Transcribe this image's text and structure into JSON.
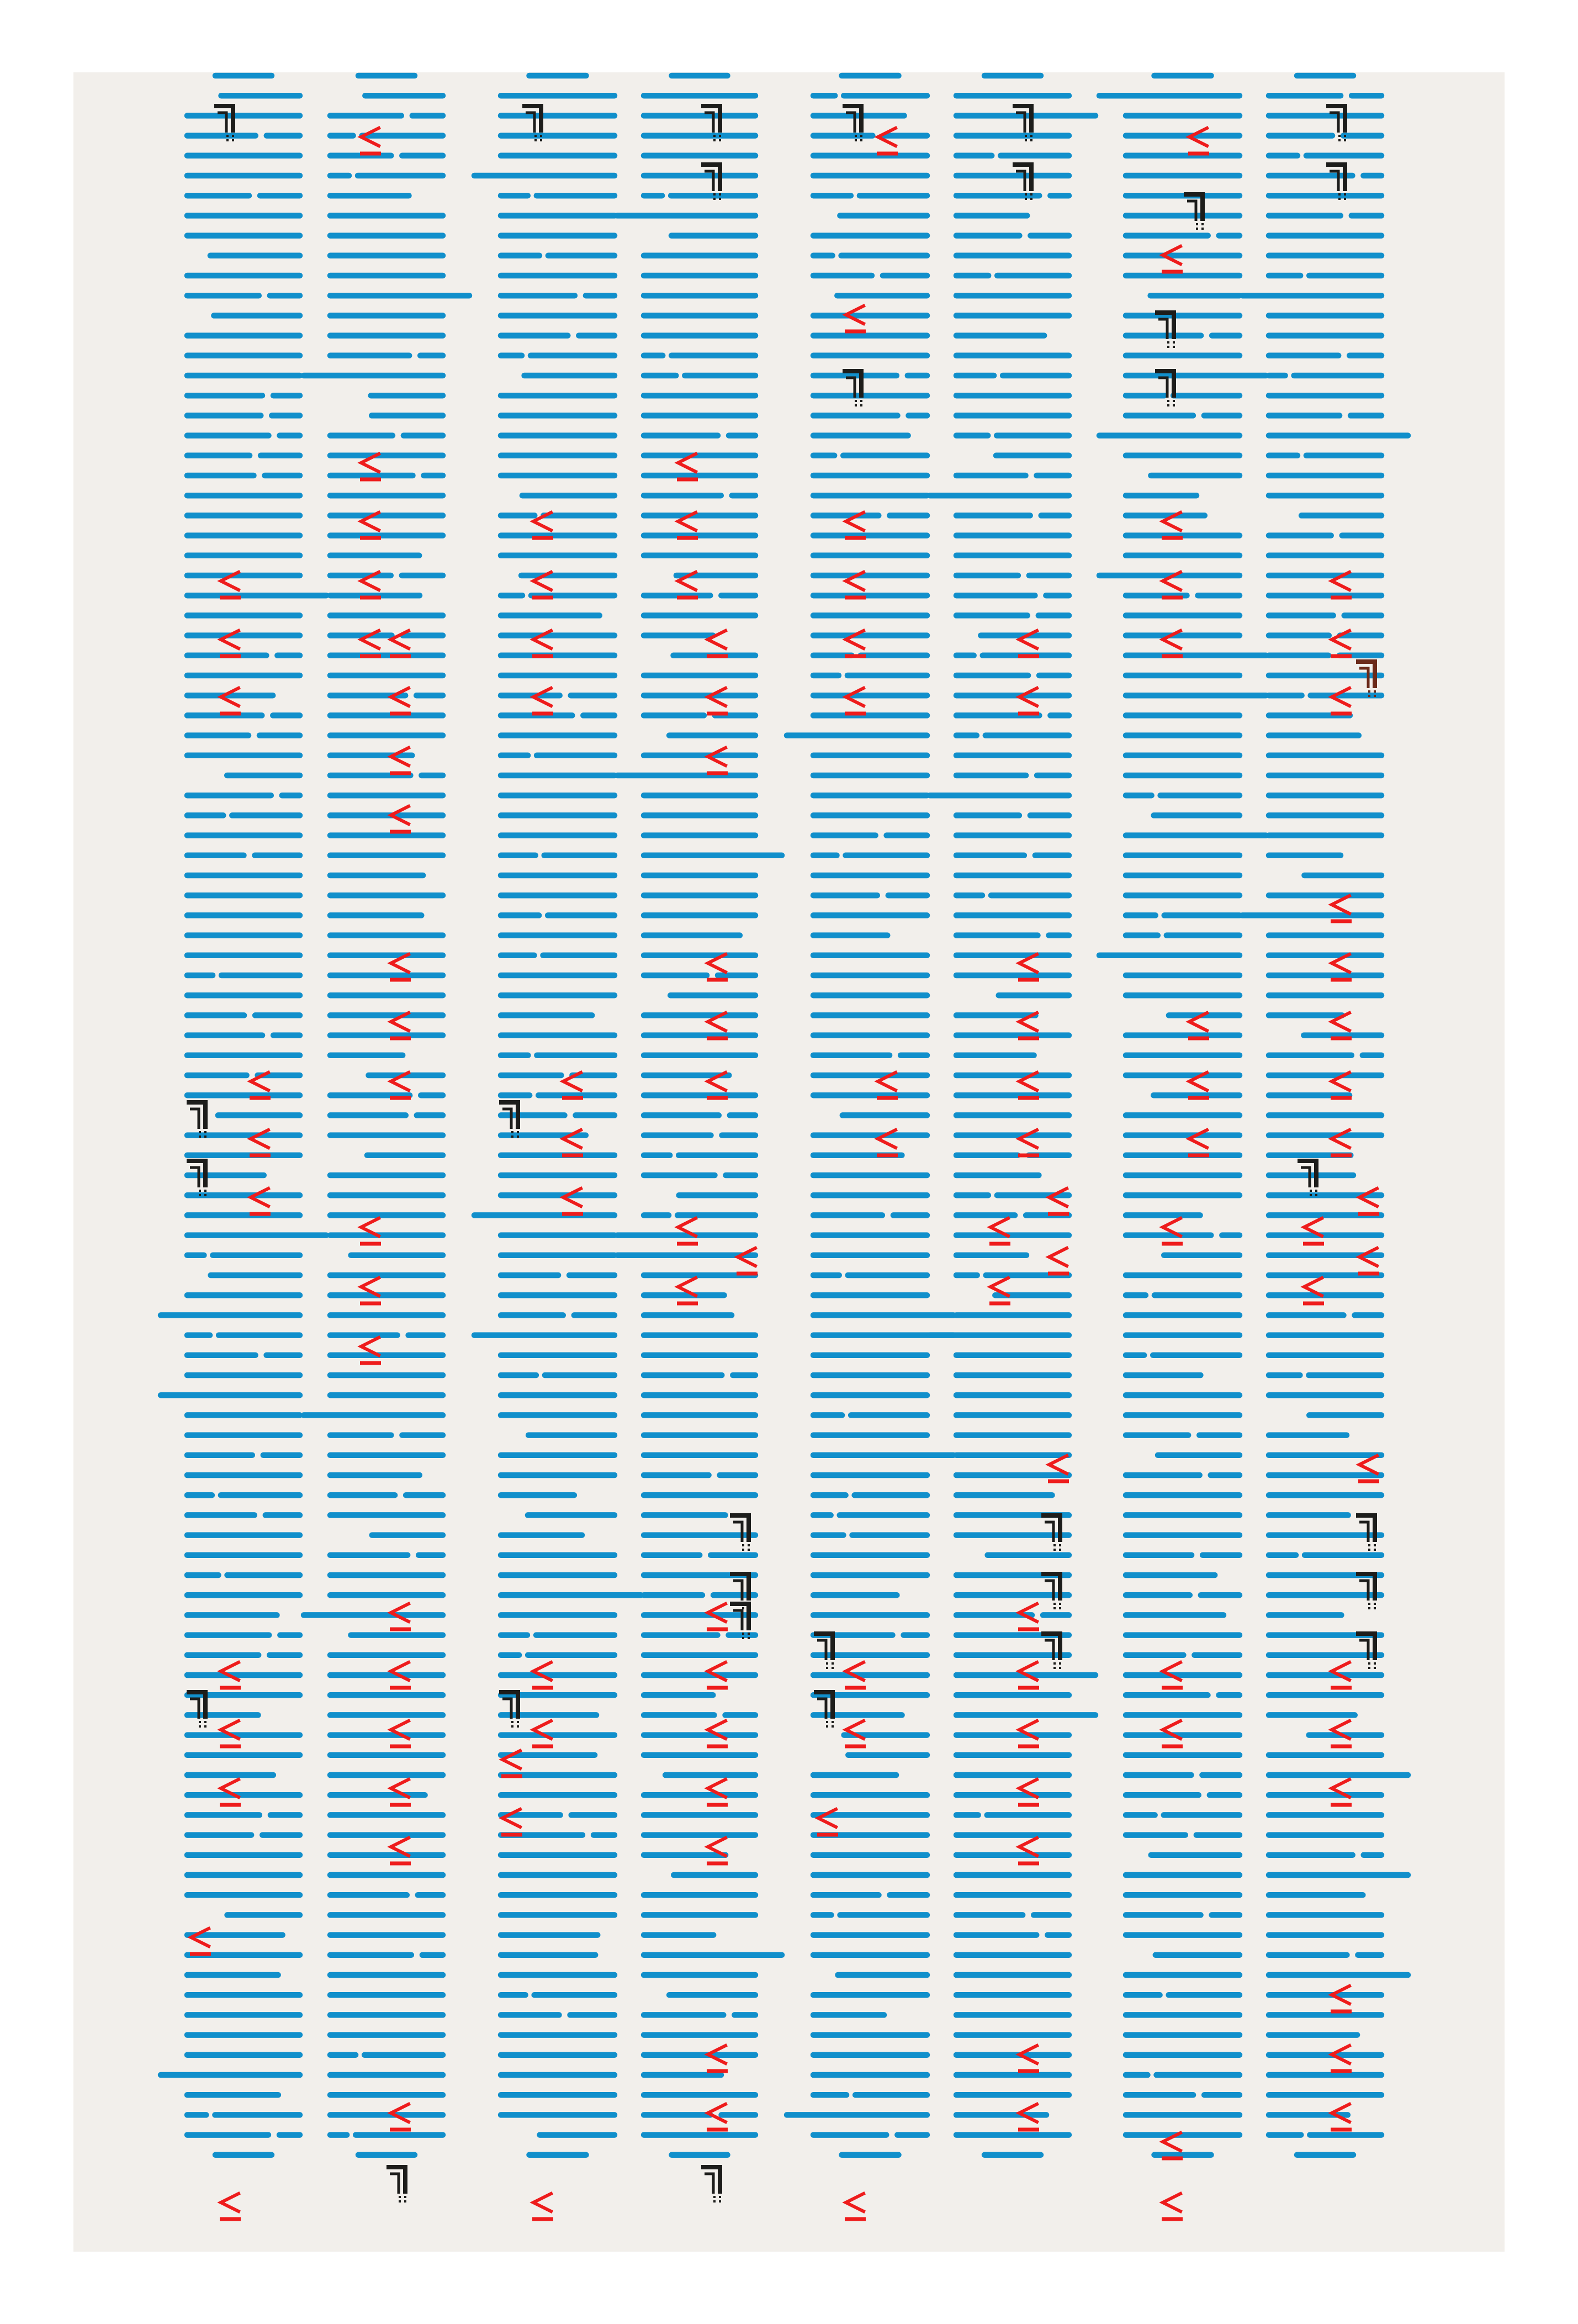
{
  "artwork": {
    "kind": "abstract-pattern",
    "colors": {
      "background": "#ffffff",
      "paper": "#f2efeb",
      "bar": "#118fcb",
      "less_than_mark": "#ee1c1c",
      "underline": "#ee1c1c",
      "bracket_mark": "#1d1d1b",
      "bracket_mark_alt": "#6b2a1a"
    },
    "glyphs": {
      "less_than": "less-than-sign",
      "bracket": "not-sign-bracket"
    },
    "column_count": 8,
    "rows_per_column": 105
  }
}
